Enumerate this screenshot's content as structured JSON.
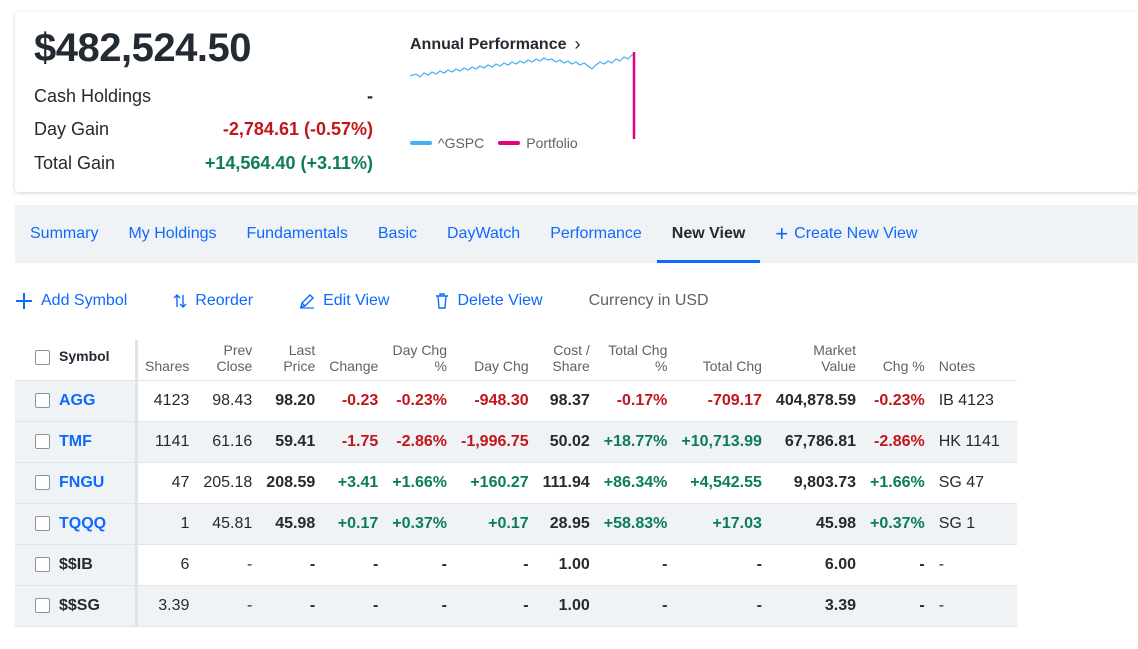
{
  "summary": {
    "total_value": "$482,524.50",
    "cash_label": "Cash Holdings",
    "cash_value": "-",
    "day_gain_label": "Day Gain",
    "day_gain_value": "-2,784.61 (-0.57%)",
    "total_gain_label": "Total Gain",
    "total_gain_value": "+14,564.40 (+3.11%)"
  },
  "performance": {
    "title": "Annual Performance",
    "chevron": "chevron-right-icon",
    "legend": [
      {
        "name": "^GSPC",
        "color": "#45b0f5"
      },
      {
        "name": "Portfolio",
        "color": "#e5007e"
      }
    ]
  },
  "tabs": [
    {
      "label": "Summary",
      "active": false
    },
    {
      "label": "My Holdings",
      "active": false
    },
    {
      "label": "Fundamentals",
      "active": false
    },
    {
      "label": "Basic",
      "active": false
    },
    {
      "label": "DayWatch",
      "active": false
    },
    {
      "label": "Performance",
      "active": false
    },
    {
      "label": "New View",
      "active": true
    }
  ],
  "create_view_label": "Create New View",
  "toolbar": {
    "add_symbol": "Add Symbol",
    "reorder": "Reorder",
    "edit_view": "Edit View",
    "delete_view": "Delete View",
    "currency": "Currency in USD"
  },
  "table": {
    "headers": {
      "symbol": "Symbol",
      "shares": "Shares",
      "prev_close_1": "Prev",
      "prev_close_2": "Close",
      "last_price_1": "Last",
      "last_price_2": "Price",
      "change": "Change",
      "day_chg_pct_1": "Day Chg",
      "day_chg_pct_2": "%",
      "day_chg": "Day Chg",
      "cost_share_1": "Cost /",
      "cost_share_2": "Share",
      "total_chg_pct_1": "Total Chg",
      "total_chg_pct_2": "%",
      "total_chg": "Total Chg",
      "market_value": "Market Value",
      "chg_pct": "Chg %",
      "notes": "Notes"
    },
    "rows": [
      {
        "symbol": "AGG",
        "shares": "4123",
        "prev": "98.43",
        "last": "98.20",
        "change": "-0.23",
        "daypct": "-0.23%",
        "daychg": "-948.30",
        "cost": "98.37",
        "totpct": "-0.17%",
        "totchg": "-709.17",
        "mv": "404,878.59",
        "chgpct": "-0.23%",
        "notes": "IB 4123"
      },
      {
        "symbol": "TMF",
        "shares": "1141",
        "prev": "61.16",
        "last": "59.41",
        "change": "-1.75",
        "daypct": "-2.86%",
        "daychg": "-1,996.75",
        "cost": "50.02",
        "totpct": "+18.77%",
        "totchg": "+10,713.99",
        "mv": "67,786.81",
        "chgpct": "-2.86%",
        "notes": "HK 1141"
      },
      {
        "symbol": "FNGU",
        "shares": "47",
        "prev": "205.18",
        "last": "208.59",
        "change": "+3.41",
        "daypct": "+1.66%",
        "daychg": "+160.27",
        "cost": "111.94",
        "totpct": "+86.34%",
        "totchg": "+4,542.55",
        "mv": "9,803.73",
        "chgpct": "+1.66%",
        "notes": "SG 47"
      },
      {
        "symbol": "TQQQ",
        "shares": "1",
        "prev": "45.81",
        "last": "45.98",
        "change": "+0.17",
        "daypct": "+0.37%",
        "daychg": "+0.17",
        "cost": "28.95",
        "totpct": "+58.83%",
        "totchg": "+17.03",
        "mv": "45.98",
        "chgpct": "+0.37%",
        "notes": "SG 1"
      },
      {
        "symbol": "$$IB",
        "shares": "6",
        "prev": "-",
        "last": "-",
        "change": "-",
        "daypct": "-",
        "daychg": "-",
        "cost": "1.00",
        "totpct": "-",
        "totchg": "-",
        "mv": "6.00",
        "chgpct": "-",
        "notes": "-"
      },
      {
        "symbol": "$$SG",
        "shares": "3.39",
        "prev": "-",
        "last": "-",
        "change": "-",
        "daypct": "-",
        "daychg": "-",
        "cost": "1.00",
        "totpct": "-",
        "totchg": "-",
        "mv": "3.39",
        "chgpct": "-",
        "notes": "-"
      }
    ]
  },
  "colors": {
    "accent": "#0f69ff",
    "negative": "#c0161c",
    "positive": "#0c7c59",
    "panel": "#f0f3f5"
  }
}
